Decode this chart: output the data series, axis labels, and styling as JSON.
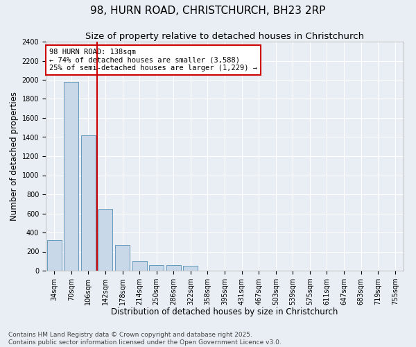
{
  "title_line1": "98, HURN ROAD, CHRISTCHURCH, BH23 2RP",
  "title_line2": "Size of property relative to detached houses in Christchurch",
  "xlabel": "Distribution of detached houses by size in Christchurch",
  "ylabel": "Number of detached properties",
  "categories": [
    "34sqm",
    "70sqm",
    "106sqm",
    "142sqm",
    "178sqm",
    "214sqm",
    "250sqm",
    "286sqm",
    "322sqm",
    "358sqm",
    "395sqm",
    "431sqm",
    "467sqm",
    "503sqm",
    "539sqm",
    "575sqm",
    "611sqm",
    "647sqm",
    "683sqm",
    "719sqm",
    "755sqm"
  ],
  "values": [
    320,
    1975,
    1420,
    650,
    270,
    100,
    60,
    60,
    50,
    0,
    0,
    0,
    0,
    0,
    0,
    0,
    0,
    0,
    0,
    0,
    0
  ],
  "bar_color": "#c8d8e8",
  "bar_edge_color": "#6699bb",
  "vline_color": "#cc0000",
  "annotation_text": "98 HURN ROAD: 138sqm\n← 74% of detached houses are smaller (3,588)\n25% of semi-detached houses are larger (1,229) →",
  "annotation_box_color": "#cc0000",
  "ylim": [
    0,
    2400
  ],
  "yticks": [
    0,
    200,
    400,
    600,
    800,
    1000,
    1200,
    1400,
    1600,
    1800,
    2000,
    2200,
    2400
  ],
  "footer_line1": "Contains HM Land Registry data © Crown copyright and database right 2025.",
  "footer_line2": "Contains public sector information licensed under the Open Government Licence v3.0.",
  "background_color": "#e8eef4",
  "plot_background_color": "#e8eef4",
  "grid_color": "#ffffff",
  "title_fontsize": 11,
  "subtitle_fontsize": 9.5,
  "axis_label_fontsize": 8.5,
  "tick_fontsize": 7,
  "footer_fontsize": 6.5,
  "annotation_fontsize": 7.5
}
